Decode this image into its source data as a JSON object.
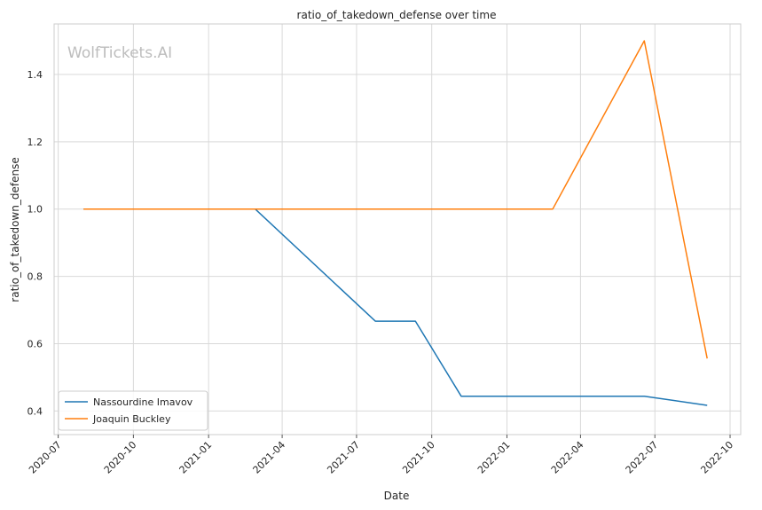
{
  "watermark": "WolfTickets.AI",
  "chart_data": {
    "type": "line",
    "title": "ratio_of_takedown_defense over time",
    "xlabel": "Date",
    "ylabel": "ratio_of_takedown_defense",
    "x_ticks": [
      "2020-07",
      "2020-10",
      "2021-01",
      "2021-04",
      "2021-07",
      "2021-10",
      "2022-01",
      "2022-04",
      "2022-07",
      "2022-10"
    ],
    "y_ticks": [
      "0.4",
      "0.6",
      "0.8",
      "1.0",
      "1.2",
      "1.4"
    ],
    "xlim": [
      "2020-06-26",
      "2022-10-14"
    ],
    "ylim": [
      0.33,
      1.55
    ],
    "grid": true,
    "legend_position": "lower-left",
    "series": [
      {
        "name": "Nassourdine Imavov",
        "color": "#1f77b4",
        "points": [
          {
            "x": "2020-08-01",
            "y": 1.0
          },
          {
            "x": "2021-02-27",
            "y": 1.0
          },
          {
            "x": "2021-07-24",
            "y": 0.667
          },
          {
            "x": "2021-09-11",
            "y": 0.667
          },
          {
            "x": "2021-11-06",
            "y": 0.444
          },
          {
            "x": "2022-06-18",
            "y": 0.444
          },
          {
            "x": "2022-09-03",
            "y": 0.417
          }
        ]
      },
      {
        "name": "Joaquin Buckley",
        "color": "#ff7f0e",
        "points": [
          {
            "x": "2020-08-01",
            "y": 1.0
          },
          {
            "x": "2022-02-26",
            "y": 1.0
          },
          {
            "x": "2022-06-18",
            "y": 1.5
          },
          {
            "x": "2022-09-03",
            "y": 0.556
          }
        ]
      }
    ]
  }
}
